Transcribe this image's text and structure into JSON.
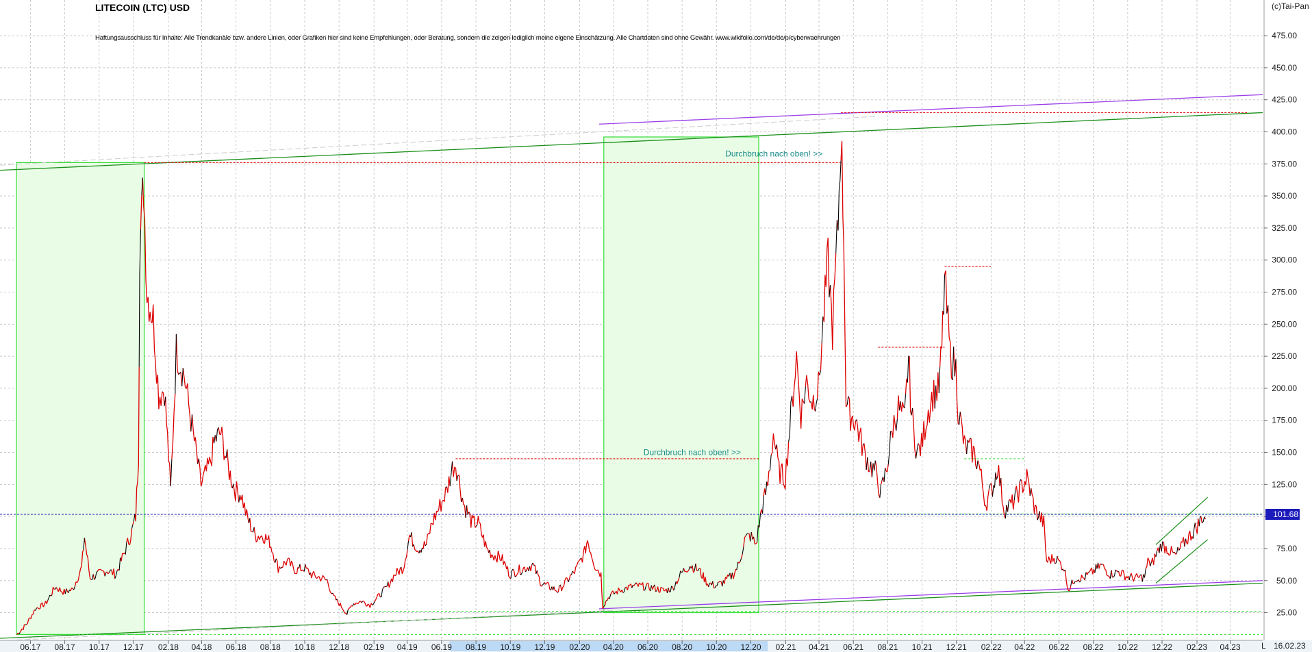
{
  "header": {
    "title": "LITECOIN (LTC) USD",
    "disclaimer": "Haftungsausschluss für Inhalte: Alle Trendkanäle bzw. andere Linien, oder Grafiken hier sind keine Empfehlungen, oder Beratung, sondern die zeigen lediglich meine eigene Einschätzung. Alle Chartdaten sind ohne Gewähr.  www.wikifolio.com/de/de/p/cyberwaehrungen",
    "copyright": "(c)Tai-Pan",
    "date": "16.02.23",
    "scroll_marker": "L"
  },
  "chart_data": {
    "type": "line",
    "title": "LITECOIN (LTC) USD",
    "xlabel": "",
    "ylabel": "",
    "ylim": [
      5,
      490
    ],
    "y_ticks": [
      25,
      50,
      75,
      100,
      125,
      150,
      175,
      200,
      225,
      250,
      275,
      300,
      325,
      350,
      375,
      400,
      425,
      450,
      475
    ],
    "y_tick_labels": [
      "25.00",
      "50.00",
      "75.00",
      "100.00",
      "125.00",
      "150.00",
      "175.00",
      "200.00",
      "225.00",
      "250.00",
      "275.00",
      "300.00",
      "325.00",
      "350.00",
      "375.00",
      "400.00",
      "425.00",
      "450.00",
      "475.00"
    ],
    "x_range": [
      "2017-05-01",
      "2023-05-15"
    ],
    "x_ticks": [
      {
        "date": "2017-06-01",
        "label": "06.17"
      },
      {
        "date": "2017-08-01",
        "label": "08.17"
      },
      {
        "date": "2017-10-01",
        "label": "10.17"
      },
      {
        "date": "2017-12-01",
        "label": "12.17"
      },
      {
        "date": "2018-02-01",
        "label": "02.18"
      },
      {
        "date": "2018-04-01",
        "label": "04.18"
      },
      {
        "date": "2018-06-01",
        "label": "06.18"
      },
      {
        "date": "2018-08-01",
        "label": "08.18"
      },
      {
        "date": "2018-10-01",
        "label": "10.18"
      },
      {
        "date": "2018-12-01",
        "label": "12.18"
      },
      {
        "date": "2019-02-01",
        "label": "02.19"
      },
      {
        "date": "2019-04-01",
        "label": "04.19"
      },
      {
        "date": "2019-06-01",
        "label": "06.19"
      },
      {
        "date": "2019-08-01",
        "label": "08.19"
      },
      {
        "date": "2019-10-01",
        "label": "10.19"
      },
      {
        "date": "2019-12-01",
        "label": "12.19"
      },
      {
        "date": "2020-02-01",
        "label": "02.20"
      },
      {
        "date": "2020-04-01",
        "label": "04.20"
      },
      {
        "date": "2020-06-01",
        "label": "06.20"
      },
      {
        "date": "2020-08-01",
        "label": "08.20"
      },
      {
        "date": "2020-10-01",
        "label": "10.20"
      },
      {
        "date": "2020-12-01",
        "label": "12.20"
      },
      {
        "date": "2021-02-01",
        "label": "02.21"
      },
      {
        "date": "2021-04-01",
        "label": "04.21"
      },
      {
        "date": "2021-06-01",
        "label": "06.21"
      },
      {
        "date": "2021-08-01",
        "label": "08.21"
      },
      {
        "date": "2021-10-01",
        "label": "10.21"
      },
      {
        "date": "2021-12-01",
        "label": "12.21"
      },
      {
        "date": "2022-02-01",
        "label": "02.22"
      },
      {
        "date": "2022-04-01",
        "label": "04.22"
      },
      {
        "date": "2022-06-01",
        "label": "06.22"
      },
      {
        "date": "2022-08-01",
        "label": "08.22"
      },
      {
        "date": "2022-10-01",
        "label": "10.22"
      },
      {
        "date": "2022-12-01",
        "label": "12.22"
      },
      {
        "date": "2023-02-01",
        "label": "02.23"
      },
      {
        "date": "2023-04-01",
        "label": "04.23"
      }
    ],
    "x_highlight_range": [
      "2019-06-15",
      "2020-12-31"
    ],
    "grid": true,
    "series": [
      {
        "color": "#dd0000",
        "points": [
          [
            "2017-05-08",
            8
          ],
          [
            "2017-05-25",
            16
          ],
          [
            "2017-06-10",
            28
          ],
          [
            "2017-06-28",
            32
          ],
          [
            "2017-07-15",
            45
          ],
          [
            "2017-07-31",
            41
          ],
          [
            "2017-08-15",
            43
          ],
          [
            "2017-08-31",
            60
          ],
          [
            "2017-09-05",
            84
          ],
          [
            "2017-09-15",
            52
          ],
          [
            "2017-09-30",
            55
          ],
          [
            "2017-10-15",
            58
          ],
          [
            "2017-10-31",
            55
          ],
          [
            "2017-11-15",
            72
          ],
          [
            "2017-11-28",
            88
          ],
          [
            "2017-12-05",
            100
          ],
          [
            "2017-12-10",
            150
          ],
          [
            "2017-12-12",
            310
          ],
          [
            "2017-12-19",
            360
          ],
          [
            "2017-12-25",
            275
          ],
          [
            "2018-01-05",
            255
          ],
          [
            "2018-01-15",
            195
          ],
          [
            "2018-01-25",
            200
          ],
          [
            "2018-02-05",
            120
          ],
          [
            "2018-02-15",
            230
          ],
          [
            "2018-03-01",
            210
          ],
          [
            "2018-03-15",
            170
          ],
          [
            "2018-03-31",
            125
          ],
          [
            "2018-04-15",
            140
          ],
          [
            "2018-04-25",
            160
          ],
          [
            "2018-05-05",
            165
          ],
          [
            "2018-05-20",
            135
          ],
          [
            "2018-05-31",
            120
          ],
          [
            "2018-06-10",
            118
          ],
          [
            "2018-06-20",
            100
          ],
          [
            "2018-07-05",
            85
          ],
          [
            "2018-07-20",
            85
          ],
          [
            "2018-07-31",
            80
          ],
          [
            "2018-08-15",
            60
          ],
          [
            "2018-08-31",
            65
          ],
          [
            "2018-09-15",
            58
          ],
          [
            "2018-09-30",
            60
          ],
          [
            "2018-10-15",
            54
          ],
          [
            "2018-10-31",
            52
          ],
          [
            "2018-11-10",
            50
          ],
          [
            "2018-11-20",
            38
          ],
          [
            "2018-12-05",
            30
          ],
          [
            "2018-12-15",
            24
          ],
          [
            "2018-12-25",
            32
          ],
          [
            "2019-01-10",
            34
          ],
          [
            "2019-01-25",
            31
          ],
          [
            "2019-02-10",
            38
          ],
          [
            "2019-02-24",
            45
          ],
          [
            "2019-03-10",
            55
          ],
          [
            "2019-03-25",
            60
          ],
          [
            "2019-04-05",
            85
          ],
          [
            "2019-04-20",
            75
          ],
          [
            "2019-05-05",
            78
          ],
          [
            "2019-05-15",
            95
          ],
          [
            "2019-05-31",
            110
          ],
          [
            "2019-06-10",
            120
          ],
          [
            "2019-06-20",
            138
          ],
          [
            "2019-06-26",
            142
          ],
          [
            "2019-07-10",
            110
          ],
          [
            "2019-07-25",
            95
          ],
          [
            "2019-08-05",
            95
          ],
          [
            "2019-08-20",
            75
          ],
          [
            "2019-08-31",
            70
          ],
          [
            "2019-09-15",
            68
          ],
          [
            "2019-09-30",
            55
          ],
          [
            "2019-10-15",
            58
          ],
          [
            "2019-10-28",
            60
          ],
          [
            "2019-11-10",
            62
          ],
          [
            "2019-11-25",
            48
          ],
          [
            "2019-12-10",
            45
          ],
          [
            "2019-12-25",
            42
          ],
          [
            "2020-01-10",
            50
          ],
          [
            "2020-01-25",
            58
          ],
          [
            "2020-02-10",
            72
          ],
          [
            "2020-02-15",
            82
          ],
          [
            "2020-02-28",
            62
          ],
          [
            "2020-03-10",
            55
          ],
          [
            "2020-03-13",
            30
          ],
          [
            "2020-03-25",
            38
          ],
          [
            "2020-04-10",
            42
          ],
          [
            "2020-04-30",
            45
          ],
          [
            "2020-05-15",
            46
          ],
          [
            "2020-05-31",
            45
          ],
          [
            "2020-06-15",
            44
          ],
          [
            "2020-06-30",
            42
          ],
          [
            "2020-07-15",
            44
          ],
          [
            "2020-07-31",
            56
          ],
          [
            "2020-08-15",
            62
          ],
          [
            "2020-08-31",
            58
          ],
          [
            "2020-09-15",
            48
          ],
          [
            "2020-09-30",
            46
          ],
          [
            "2020-10-15",
            49
          ],
          [
            "2020-10-31",
            55
          ],
          [
            "2020-11-10",
            63
          ],
          [
            "2020-11-20",
            82
          ],
          [
            "2020-11-30",
            85
          ],
          [
            "2020-12-10",
            78
          ],
          [
            "2020-12-20",
            105
          ],
          [
            "2020-12-31",
            125
          ],
          [
            "2021-01-10",
            165
          ],
          [
            "2021-01-20",
            135
          ],
          [
            "2021-01-31",
            130
          ],
          [
            "2021-02-10",
            178
          ],
          [
            "2021-02-20",
            225
          ],
          [
            "2021-02-28",
            180
          ],
          [
            "2021-03-10",
            205
          ],
          [
            "2021-03-20",
            190
          ],
          [
            "2021-03-31",
            200
          ],
          [
            "2021-04-10",
            260
          ],
          [
            "2021-04-17",
            300
          ],
          [
            "2021-04-25",
            245
          ],
          [
            "2021-05-05",
            330
          ],
          [
            "2021-05-10",
            400
          ],
          [
            "2021-05-15",
            320
          ],
          [
            "2021-05-19",
            190
          ],
          [
            "2021-05-25",
            180
          ],
          [
            "2021-06-05",
            175
          ],
          [
            "2021-06-20",
            150
          ],
          [
            "2021-06-30",
            140
          ],
          [
            "2021-07-10",
            135
          ],
          [
            "2021-07-20",
            118
          ],
          [
            "2021-07-31",
            140
          ],
          [
            "2021-08-10",
            170
          ],
          [
            "2021-08-20",
            185
          ],
          [
            "2021-08-31",
            175
          ],
          [
            "2021-09-07",
            225
          ],
          [
            "2021-09-12",
            180
          ],
          [
            "2021-09-22",
            150
          ],
          [
            "2021-09-30",
            155
          ],
          [
            "2021-10-10",
            180
          ],
          [
            "2021-10-20",
            195
          ],
          [
            "2021-10-31",
            200
          ],
          [
            "2021-11-05",
            230
          ],
          [
            "2021-11-10",
            285
          ],
          [
            "2021-11-20",
            225
          ],
          [
            "2021-11-30",
            215
          ],
          [
            "2021-12-04",
            185
          ],
          [
            "2021-12-15",
            155
          ],
          [
            "2021-12-31",
            150
          ],
          [
            "2022-01-10",
            140
          ],
          [
            "2022-01-22",
            110
          ],
          [
            "2022-02-05",
            125
          ],
          [
            "2022-02-12",
            140
          ],
          [
            "2022-02-24",
            105
          ],
          [
            "2022-03-10",
            110
          ],
          [
            "2022-03-25",
            122
          ],
          [
            "2022-04-05",
            130
          ],
          [
            "2022-04-20",
            105
          ],
          [
            "2022-05-05",
            95
          ],
          [
            "2022-05-10",
            65
          ],
          [
            "2022-05-25",
            68
          ],
          [
            "2022-06-10",
            60
          ],
          [
            "2022-06-18",
            43
          ],
          [
            "2022-06-30",
            52
          ],
          [
            "2022-07-15",
            52
          ],
          [
            "2022-07-31",
            57
          ],
          [
            "2022-08-15",
            62
          ],
          [
            "2022-08-31",
            55
          ],
          [
            "2022-09-15",
            57
          ],
          [
            "2022-09-30",
            53
          ],
          [
            "2022-10-15",
            52
          ],
          [
            "2022-10-31",
            53
          ],
          [
            "2022-11-08",
            68
          ],
          [
            "2022-11-10",
            60
          ],
          [
            "2022-11-20",
            70
          ],
          [
            "2022-11-30",
            78
          ],
          [
            "2022-12-10",
            75
          ],
          [
            "2022-12-25",
            69
          ],
          [
            "2023-01-10",
            80
          ],
          [
            "2023-01-25",
            88
          ],
          [
            "2023-02-05",
            95
          ],
          [
            "2023-02-10",
            100
          ],
          [
            "2023-02-16",
            98
          ]
        ]
      }
    ],
    "last_price_label": "101.68",
    "annotations": [
      {
        "text": "Durchbruch nach oben! >>",
        "date": "2021-03-20",
        "y": 383
      },
      {
        "text": "Durchbruch nach oben! >>",
        "date": "2020-12-05",
        "y": 150
      }
    ],
    "colors": {
      "price_up": "#000000",
      "price_down": "#dd0000",
      "trend_green": "#1a8f1a",
      "trend_purple": "#9a3ee8",
      "box_fill": "#e9fde6",
      "box_border": "#33dd33",
      "last_price_line": "#1b1bbb",
      "resistance": "#dd0000",
      "annotation_text": "#1a8a8a",
      "axis_highlight": "#bcd9f5"
    }
  }
}
